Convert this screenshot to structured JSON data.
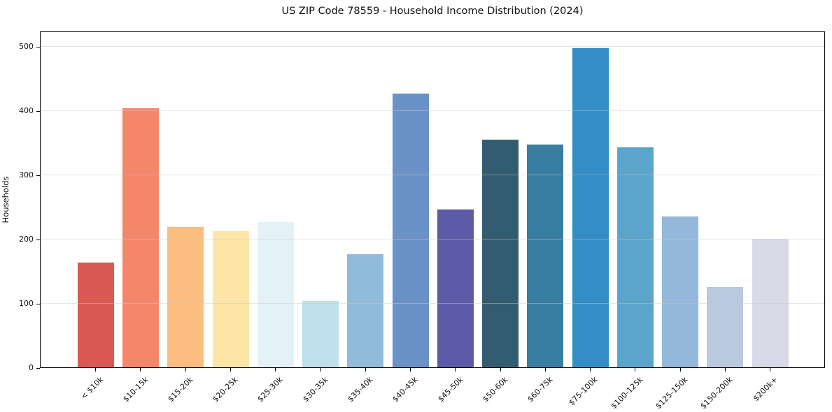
{
  "figure": {
    "title": "US ZIP Code 78559 - Household Income Distribution (2024)"
  },
  "chart_data": {
    "type": "bar",
    "title": "US ZIP Code 78559 - Household Income Distribution (2024)",
    "xlabel": "",
    "ylabel": "Households",
    "categories": [
      "< $10k",
      "$10-15k",
      "$15-20k",
      "$20-25k",
      "$25-30k",
      "$30-35k",
      "$35-40k",
      "$40-45k",
      "$45-50k",
      "$50-60k",
      "$60-75k",
      "$75-100k",
      "$100-125k",
      "$125-150k",
      "$150-200k",
      "$200k+"
    ],
    "values": [
      163,
      404,
      219,
      212,
      226,
      103,
      176,
      426,
      246,
      355,
      347,
      497,
      343,
      235,
      125,
      200
    ],
    "bar_colors": [
      "#d85a52",
      "#f4876a",
      "#fcbd80",
      "#fde5a7",
      "#e4f1f7",
      "#bfdfec",
      "#91bcd9",
      "#6a92c7",
      "#5d5aa8",
      "#345c70",
      "#377ea0",
      "#348dc4",
      "#5ba5cb",
      "#93b8d9",
      "#b8c9e0",
      "#d8dae7"
    ],
    "yticks": [
      0,
      100,
      200,
      300,
      400,
      500
    ],
    "ylim": [
      0,
      522
    ],
    "grid": "horizontal",
    "legend": "none",
    "spine_color": "#000000",
    "gridline_color": "#e6e6e6",
    "background_color": "#ffffff"
  }
}
